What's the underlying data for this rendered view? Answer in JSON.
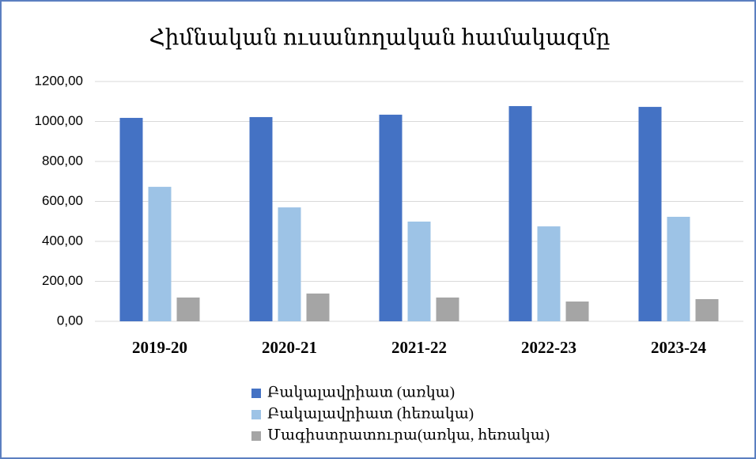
{
  "chart_data": {
    "type": "bar",
    "title": "Հիմնական ուսանողական համակազմը",
    "categories": [
      "2019-20",
      "2020-21",
      "2021-22",
      "2022-23",
      "2023-24"
    ],
    "series": [
      {
        "name": "Բակալավրիատ (առկա)",
        "color": "#4472c4",
        "values": [
          1018,
          1022,
          1034,
          1077,
          1073
        ]
      },
      {
        "name": "Բակալավրիատ (հեռակա)",
        "color": "#9dc3e6",
        "values": [
          673,
          570,
          499,
          475,
          523
        ]
      },
      {
        "name": "Մագիստրատուրա(առկա, հեռակա)",
        "color": "#a5a5a5",
        "values": [
          119,
          139,
          119,
          99,
          111
        ]
      }
    ],
    "ylim": [
      0,
      1200
    ],
    "yticks": [
      {
        "value": 0,
        "label": "0,00"
      },
      {
        "value": 200,
        "label": "200,00"
      },
      {
        "value": 400,
        "label": "400,00"
      },
      {
        "value": 600,
        "label": "600,00"
      },
      {
        "value": 800,
        "label": "800,00"
      },
      {
        "value": 1000,
        "label": "1000,00"
      },
      {
        "value": 1200,
        "label": "1200,00"
      }
    ],
    "grid": true,
    "legend": "bottom"
  }
}
